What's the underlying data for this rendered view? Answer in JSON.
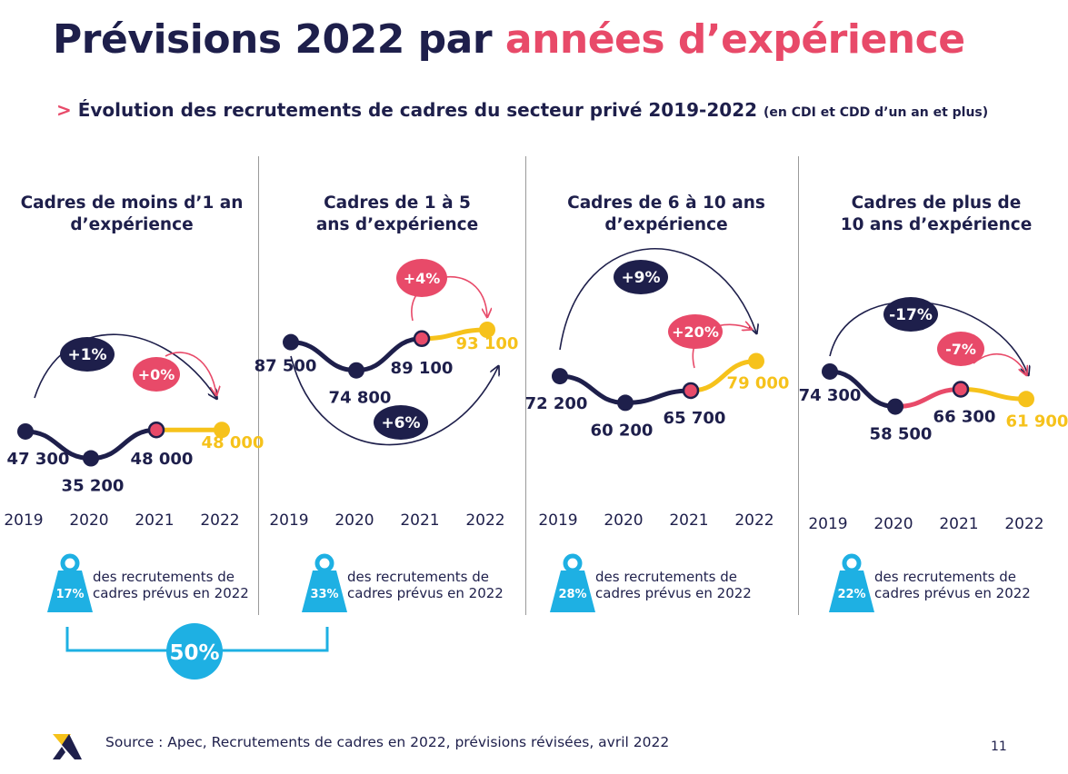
{
  "header": {
    "title_part1": "Prévisions 2022 par ",
    "title_part2": "années d’expérience",
    "subtitle_prefix": "> ",
    "subtitle_main": "Évolution des recrutements de cadres du secteur privé 2019-2022 ",
    "subtitle_note": "(en CDI et CDD d’un an et plus)"
  },
  "colors": {
    "navy": "#1e1f4b",
    "pink": "#e84a69",
    "yellow": "#f6c21b",
    "cyan": "#1eb0e3"
  },
  "chart_data": [
    {
      "type": "line",
      "title": "Cadres de moins d’1 an\nd’expérience",
      "x": [
        "2019",
        "2020",
        "2021",
        "2022"
      ],
      "values": [
        47300,
        35200,
        48000,
        48000
      ],
      "value_labels": [
        "47 300",
        "35 200",
        "48 000",
        "48 000"
      ],
      "change_2019_2022": "+1%",
      "change_2021_2022": "+0%",
      "share_2022": "17%",
      "share_text": "des recrutements de\ncadres prévus en 2022"
    },
    {
      "type": "line",
      "title": "Cadres de 1 à 5\nans d’expérience",
      "x": [
        "2019",
        "2020",
        "2021",
        "2022"
      ],
      "values": [
        87500,
        74800,
        89100,
        93100
      ],
      "value_labels": [
        "87 500",
        "74 800",
        "89 100",
        "93 100"
      ],
      "change_2019_2022": "+6%",
      "change_2021_2022": "+4%",
      "share_2022": "33%",
      "share_text": "des recrutements de\ncadres prévus en 2022"
    },
    {
      "type": "line",
      "title": "Cadres de 6 à 10 ans\nd’expérience",
      "x": [
        "2019",
        "2020",
        "2021",
        "2022"
      ],
      "values": [
        72200,
        60200,
        65700,
        79000
      ],
      "value_labels": [
        "72 200",
        "60 200",
        "65 700",
        "79 000"
      ],
      "change_2019_2022": "+9%",
      "change_2021_2022": "+20%",
      "share_2022": "28%",
      "share_text": "des recrutements de\ncadres prévus en 2022"
    },
    {
      "type": "line",
      "title": "Cadres de plus de\n10 ans d’expérience",
      "x": [
        "2019",
        "2020",
        "2021",
        "2022"
      ],
      "values": [
        74300,
        58500,
        66300,
        61900
      ],
      "value_labels": [
        "74 300",
        "58 500",
        "66 300",
        "61 900"
      ],
      "change_2019_2022": "-17%",
      "change_2021_2022": "-7%",
      "share_2022": "22%",
      "share_text": "des recrutements de\ncadres prévus en 2022"
    }
  ],
  "combined_share": "50%",
  "footer": {
    "source": "Source : Apec, Recrutements de cadres en 2022, prévisions révisées, avril 2022",
    "page_number": "11"
  }
}
